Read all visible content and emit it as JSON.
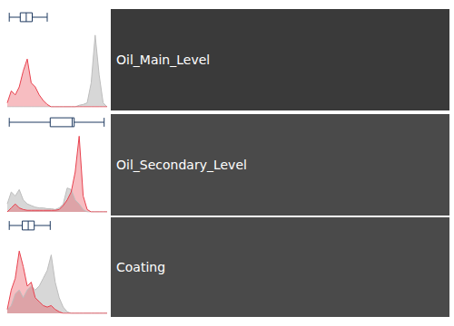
{
  "chart_data": [
    {
      "type": "area",
      "title": "Oil_Main_Level",
      "tick_labels": false,
      "xlim": [
        0,
        100
      ],
      "ylim": [
        0,
        100
      ],
      "boxplot": [
        2,
        13,
        19,
        25,
        40
      ],
      "x": [
        0,
        4,
        8,
        12,
        16,
        20,
        24,
        28,
        32,
        36,
        40,
        44,
        48,
        52,
        56,
        60,
        64,
        68,
        72,
        76,
        80,
        84,
        88,
        92,
        96,
        100
      ],
      "series": [
        {
          "color": "#bdbdbd",
          "values": [
            0,
            0,
            0,
            0,
            0,
            0,
            0,
            0,
            0,
            0,
            0,
            0,
            0,
            0,
            0,
            0,
            0,
            0,
            2,
            3,
            5,
            30,
            90,
            40,
            5,
            0
          ]
        },
        {
          "color": "#e8414e",
          "values": [
            5,
            20,
            15,
            25,
            45,
            60,
            30,
            25,
            15,
            8,
            3,
            0,
            0,
            0,
            0,
            0,
            0,
            0,
            0,
            0,
            0,
            0,
            0,
            0,
            0,
            0
          ]
        }
      ]
    },
    {
      "type": "area",
      "title": "Oil_Secondary_Level",
      "tick_labels": false,
      "xlim": [
        0,
        100
      ],
      "ylim": [
        0,
        100
      ],
      "boxplot": [
        2,
        43,
        65,
        67,
        97
      ],
      "x": [
        0,
        4,
        8,
        12,
        16,
        20,
        24,
        28,
        32,
        36,
        40,
        44,
        48,
        52,
        56,
        60,
        64,
        68,
        72,
        76,
        80,
        84,
        88,
        92,
        96,
        100
      ],
      "series": [
        {
          "color": "#bdbdbd",
          "values": [
            10,
            25,
            20,
            28,
            15,
            10,
            8,
            6,
            5,
            5,
            4,
            4,
            3,
            5,
            10,
            30,
            28,
            15,
            10,
            3,
            0,
            0,
            0,
            0,
            0,
            0
          ]
        },
        {
          "color": "#e8414e",
          "values": [
            0,
            5,
            10,
            5,
            3,
            2,
            2,
            2,
            2,
            2,
            2,
            2,
            2,
            3,
            8,
            15,
            25,
            50,
            95,
            20,
            3,
            0,
            0,
            0,
            0,
            0
          ]
        }
      ]
    },
    {
      "type": "area",
      "title": "Coating",
      "tick_labels": false,
      "xlim": [
        0,
        100
      ],
      "ylim": [
        0,
        100
      ],
      "boxplot": [
        2,
        15,
        21,
        27,
        43
      ],
      "x": [
        0,
        4,
        8,
        12,
        16,
        20,
        24,
        28,
        32,
        36,
        40,
        44,
        48,
        52,
        56,
        60,
        64,
        68,
        72,
        76,
        80,
        84,
        88,
        92,
        96,
        100
      ],
      "series": [
        {
          "color": "#bdbdbd",
          "values": [
            5,
            10,
            25,
            30,
            20,
            30,
            35,
            30,
            35,
            45,
            55,
            75,
            40,
            20,
            8,
            2,
            0,
            0,
            0,
            0,
            0,
            0,
            0,
            0,
            0,
            0
          ]
        },
        {
          "color": "#e8414e",
          "values": [
            5,
            30,
            45,
            80,
            60,
            35,
            40,
            20,
            15,
            10,
            8,
            10,
            5,
            2,
            0,
            0,
            0,
            0,
            0,
            0,
            0,
            0,
            0,
            0,
            0,
            0
          ]
        }
      ]
    }
  ]
}
